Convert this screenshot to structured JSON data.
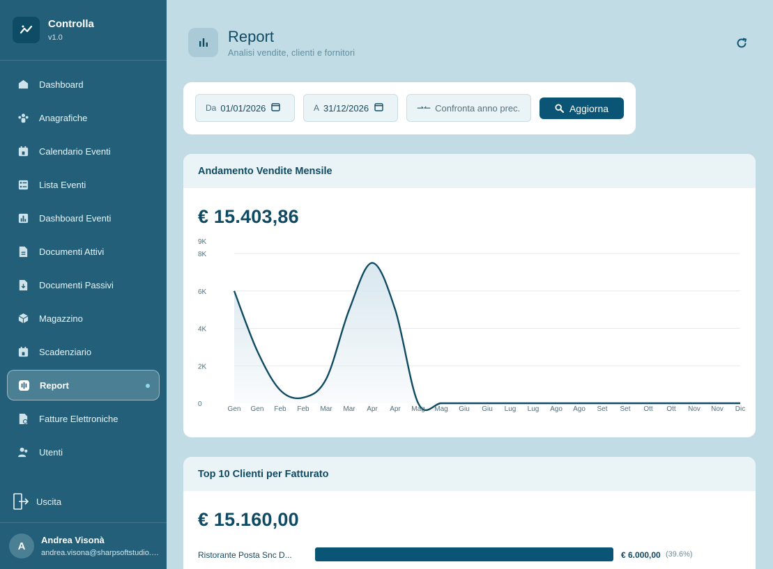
{
  "app": {
    "name": "Controlla",
    "version": "v1.0"
  },
  "sidebar": {
    "items": [
      {
        "label": "Dashboard",
        "icon": "home-icon"
      },
      {
        "label": "Anagrafiche",
        "icon": "people-icon"
      },
      {
        "label": "Calendario Eventi",
        "icon": "calendar-icon"
      },
      {
        "label": "Lista Eventi",
        "icon": "checklist-icon"
      },
      {
        "label": "Dashboard Eventi",
        "icon": "bar-chart-icon"
      },
      {
        "label": "Documenti Attivi",
        "icon": "document-icon"
      },
      {
        "label": "Documenti Passivi",
        "icon": "document-download-icon"
      },
      {
        "label": "Magazzino",
        "icon": "box-icon"
      },
      {
        "label": "Scadenziario",
        "icon": "calendar-icon"
      },
      {
        "label": "Report",
        "icon": "report-icon",
        "active": true
      },
      {
        "label": "Fatture Elettroniche",
        "icon": "invoice-icon"
      },
      {
        "label": "Utenti",
        "icon": "users-icon"
      }
    ],
    "logout_label": "Uscita",
    "user": {
      "initial": "A",
      "name": "Andrea Visonà",
      "email": "andrea.visona@sharpsoftstudio.com"
    }
  },
  "header": {
    "title": "Report",
    "subtitle": "Analisi vendite, clienti e fornitori"
  },
  "filters": {
    "from_label": "Da",
    "from_value": "01/01/2026",
    "to_label": "A",
    "to_value": "31/12/2026",
    "compare_label": "Confronta anno prec.",
    "update_label": "Aggiorna"
  },
  "sales": {
    "title": "Andamento Vendite Mensile",
    "total": "€ 15.403,86"
  },
  "chart_data": {
    "type": "area",
    "categories": [
      "Gen",
      "Gen",
      "Feb",
      "Feb",
      "Mar",
      "Mar",
      "Apr",
      "Apr",
      "Mag",
      "Mag",
      "Giu",
      "Giu",
      "Lug",
      "Lug",
      "Ago",
      "Ago",
      "Set",
      "Set",
      "Ott",
      "Ott",
      "Nov",
      "Nov",
      "Dic"
    ],
    "values": [
      6000,
      2800,
      700,
      300,
      1300,
      5000,
      7500,
      5000,
      0,
      0,
      0,
      0,
      0,
      0,
      0,
      0,
      0,
      0,
      0,
      0,
      0,
      0,
      0
    ],
    "yticks": [
      0,
      2000,
      4000,
      6000,
      8000,
      9000
    ],
    "ytick_labels": [
      "0",
      "2K",
      "4K",
      "6K",
      "8K",
      "9K"
    ],
    "ylim": [
      0,
      8000
    ],
    "grid": true,
    "colors": {
      "line": "#0f4a63",
      "fill": "#d7e6ee"
    }
  },
  "clients": {
    "title": "Top 10 Clienti per Fatturato",
    "total": "€ 15.160,00",
    "rows": [
      {
        "name": "Ristorante Posta Snc D...",
        "amount": "€ 6.000,00",
        "pct": "(39.6%)",
        "share": 0.396
      }
    ]
  }
}
